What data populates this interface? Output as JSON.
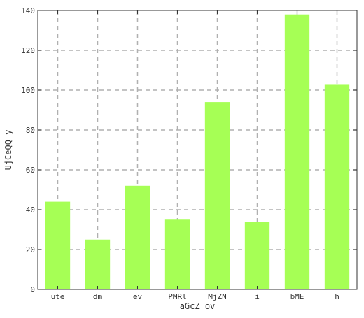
{
  "chart_data": {
    "type": "bar",
    "title": "",
    "xlabel": "aGcZ ov",
    "ylabel": "UjCeQQ  y",
    "categories": [
      "ute",
      "dm",
      "ev",
      "PMRl",
      "MjZN",
      "i",
      "bME",
      "h"
    ],
    "values": [
      44,
      25,
      52,
      35,
      94,
      34,
      138,
      103
    ],
    "ylim": [
      0,
      140
    ],
    "yticks": [
      0,
      20,
      40,
      60,
      80,
      100,
      120,
      140
    ],
    "grid": true,
    "legend": "none",
    "colors": {
      "bar": "#a6ff55",
      "grid": "#b0b0b0",
      "axis": "#333333",
      "text": "#333333"
    }
  }
}
